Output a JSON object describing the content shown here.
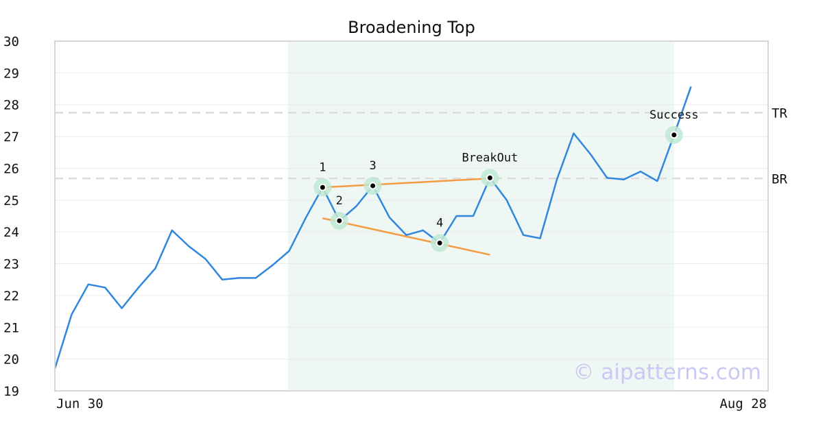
{
  "chart_data": {
    "type": "line",
    "title": "Broadening Top",
    "xlabel": "",
    "ylabel": "",
    "x_tick_labels": [
      "Jun 30",
      "Aug 28"
    ],
    "y_ticks": [
      19,
      20,
      21,
      22,
      23,
      24,
      25,
      26,
      27,
      28,
      29,
      30
    ],
    "ylim": [
      19,
      30
    ],
    "grid": true,
    "series": [
      {
        "values": [
          19.7,
          21.4,
          22.35,
          22.25,
          21.6,
          22.25,
          22.85,
          24.05,
          23.55,
          23.15,
          22.5,
          22.55,
          22.55,
          22.95,
          23.4,
          24.45,
          25.4,
          24.35,
          24.8,
          25.45,
          24.45,
          23.9,
          24.05,
          23.65,
          24.5,
          24.5,
          25.7,
          25.0,
          23.9,
          23.8,
          25.65,
          27.1,
          26.45,
          25.7,
          25.65,
          25.9,
          25.6,
          27.05,
          28.55
        ],
        "color": "#2e86de"
      }
    ],
    "pattern_region": {
      "start_index": 14,
      "end_index": 37
    },
    "reference_lines": [
      {
        "label": "TR",
        "value": 27.75
      },
      {
        "label": "BR",
        "value": 25.68
      }
    ],
    "trend_lines": [
      {
        "from": {
          "index": 16,
          "value": 25.4
        },
        "to": {
          "index": 26,
          "value": 25.68
        }
      },
      {
        "from": {
          "index": 16,
          "value": 24.43
        },
        "to": {
          "index": 26,
          "value": 23.28
        }
      }
    ],
    "markers": [
      {
        "index": 16,
        "value": 25.4,
        "label": "1",
        "label_pos": "above"
      },
      {
        "index": 17,
        "value": 24.35,
        "label": "2",
        "label_pos": "above"
      },
      {
        "index": 19,
        "value": 25.45,
        "label": "3",
        "label_pos": "above"
      },
      {
        "index": 23,
        "value": 23.65,
        "label": "4",
        "label_pos": "above"
      },
      {
        "index": 26,
        "value": 25.7,
        "label": "BreakOut",
        "label_pos": "above"
      },
      {
        "index": 37,
        "value": 27.05,
        "label": "Success",
        "label_pos": "above"
      }
    ],
    "watermark": "© aipatterns.com",
    "colors": {
      "line": "#2e86de",
      "trend": "#f39c42",
      "region": "#eef7f3",
      "marker_halo": "#bfe9d4",
      "reference": "#dcdcdc"
    }
  }
}
